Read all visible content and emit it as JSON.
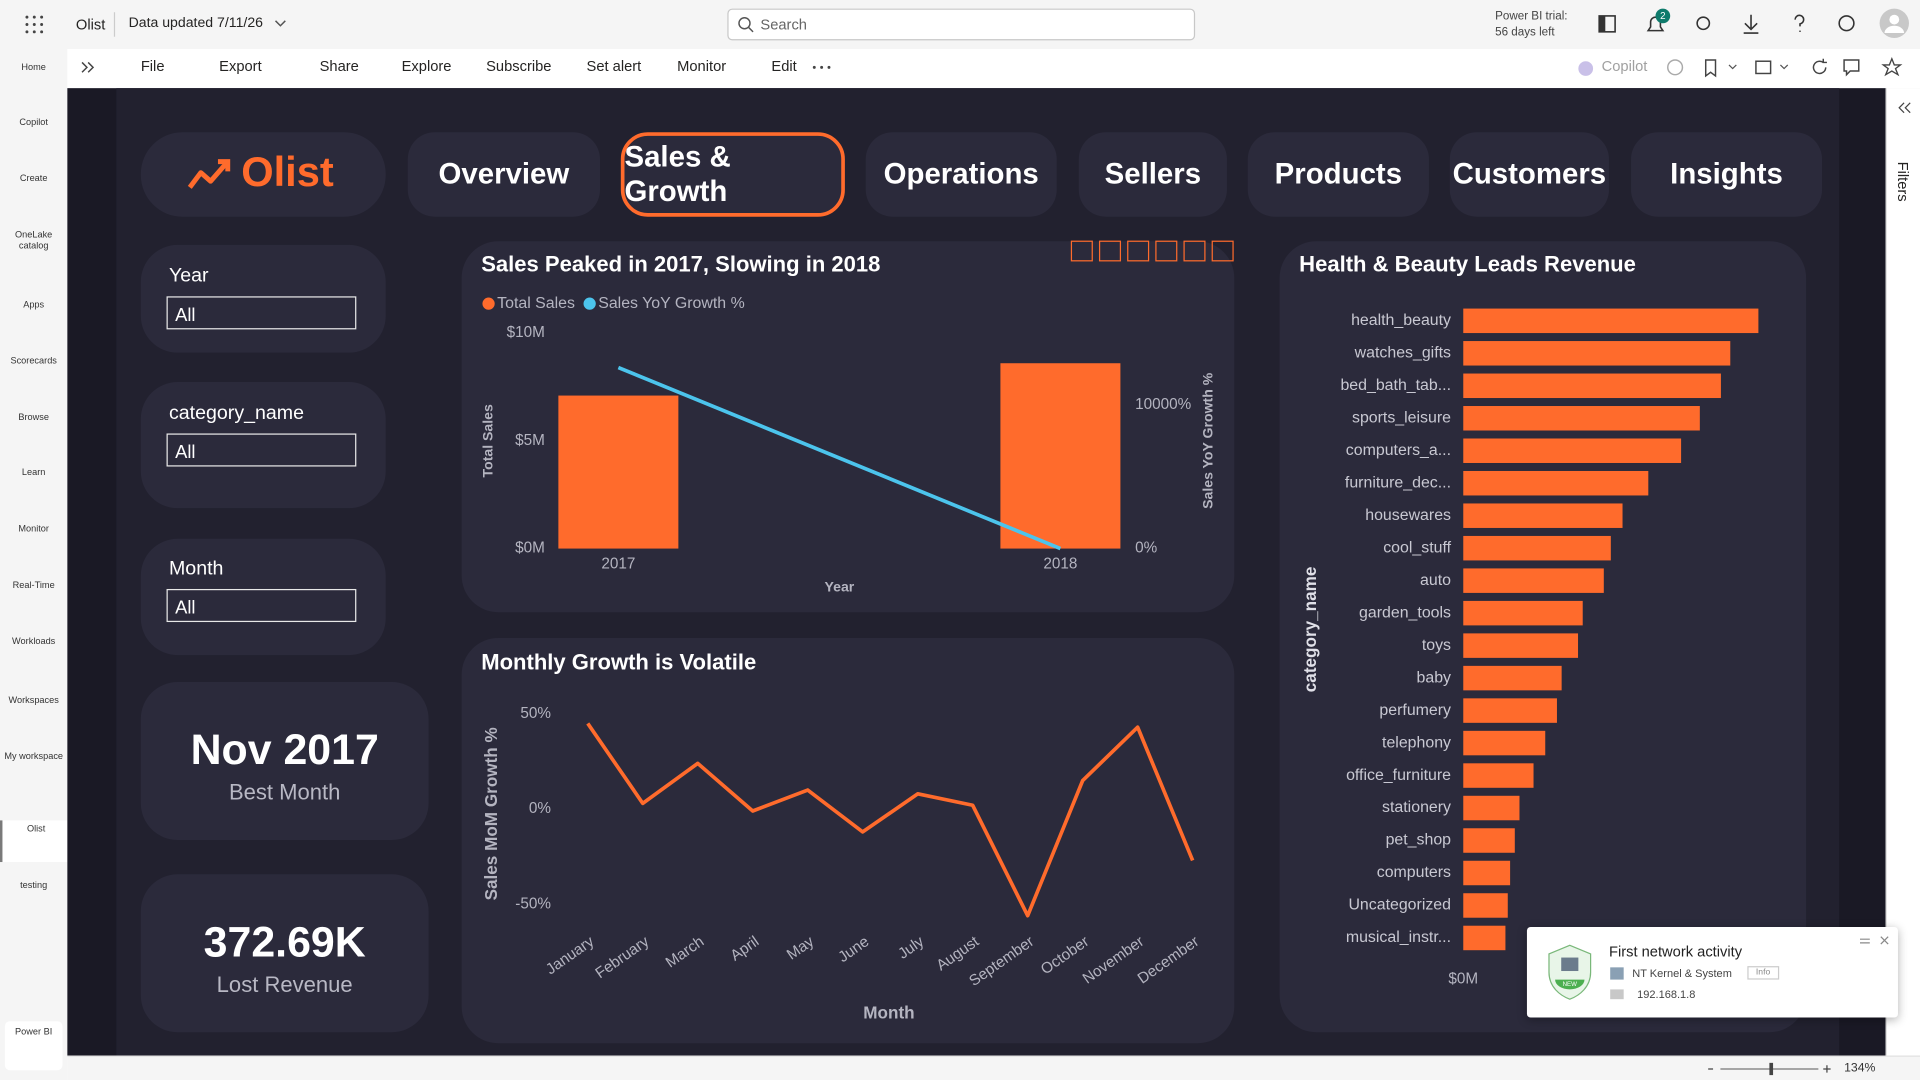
{
  "topbar": {
    "app": "Olist",
    "data_updated": "Data updated 7/11/26",
    "search": "Search",
    "trial": "Power BI trial:",
    "trial_left": "56 days left",
    "notification_count": "2"
  },
  "toolbar": {
    "items": [
      "File",
      "Export",
      "Share",
      "Explore",
      "Subscribe",
      "Set alert",
      "Monitor",
      "Edit"
    ],
    "copilot": "Copilot"
  },
  "nav": {
    "items": [
      "Home",
      "Copilot",
      "Create",
      "OneLake catalog",
      "Apps",
      "Scorecards",
      "Browse",
      "Learn",
      "Monitor",
      "Real-Time",
      "Workloads",
      "Workspaces",
      "My workspace",
      "Olist",
      "testing"
    ],
    "product": "Power BI"
  },
  "report": {
    "logo": "Olist",
    "tabs": [
      "Overview",
      "Sales & Growth",
      "Operations",
      "Sellers",
      "Products",
      "Customers",
      "Insights"
    ],
    "active_tab": 1,
    "slicers": [
      {
        "label": "Year",
        "value": "All"
      },
      {
        "label": "category_name",
        "value": "All"
      },
      {
        "label": "Month",
        "value": "All"
      }
    ],
    "cards": [
      {
        "value": "Nov 2017",
        "label": "Best Month"
      },
      {
        "value": "372.69K",
        "label": "Lost Revenue"
      }
    ]
  },
  "chart_data": [
    {
      "type": "combo",
      "title": "Sales Peaked in 2017, Slowing in 2018",
      "categories": [
        "2017",
        "2018"
      ],
      "series": [
        {
          "name": "Total Sales",
          "type": "bar",
          "color": "#ff6b2c",
          "values": [
            7100000,
            8600000
          ]
        },
        {
          "name": "Sales YoY Growth %",
          "type": "line",
          "axis": "y2",
          "color": "#4cc4ec",
          "values": [
            12600,
            0
          ]
        }
      ],
      "x_label": "Year",
      "y_label": "Total Sales",
      "y2_label": "Sales YoY Growth %",
      "ylim": [
        0,
        10000000
      ],
      "yticks": [
        {
          "value": 0,
          "label": "$0M"
        },
        {
          "value": 5000000,
          "label": "$5M"
        },
        {
          "value": 10000000,
          "label": "$10M"
        }
      ],
      "y2lim": [
        0,
        15000
      ],
      "y2ticks": [
        {
          "value": 0,
          "label": "0%"
        },
        {
          "value": 10000,
          "label": "10000%"
        }
      ]
    },
    {
      "type": "line",
      "title": "Monthly Growth is Volatile",
      "categories": [
        "January",
        "February",
        "March",
        "April",
        "May",
        "June",
        "July",
        "August",
        "September",
        "October",
        "November",
        "December"
      ],
      "values": [
        45,
        3,
        24,
        -1,
        10,
        -12,
        8,
        2,
        -56,
        15,
        43,
        -27
      ],
      "color": "#ff6b2c",
      "x_label": "Month",
      "y_label": "Sales MoM Growth %",
      "ylim": [
        -60,
        55
      ],
      "yticks": [
        {
          "value": 50,
          "label": "50%"
        },
        {
          "value": 0,
          "label": "0%"
        },
        {
          "value": -50,
          "label": "-50%"
        }
      ]
    },
    {
      "type": "barh",
      "title": "Health & Beauty Leads Revenue",
      "categories": [
        "health_beauty",
        "watches_gifts",
        "bed_bath_tab...",
        "sports_leisure",
        "computers_a...",
        "furniture_dec...",
        "housewares",
        "cool_stuff",
        "auto",
        "garden_tools",
        "toys",
        "baby",
        "perfumery",
        "telephony",
        "office_furniture",
        "stationery",
        "pet_shop",
        "computers",
        "Uncategorized",
        "musical_instr..."
      ],
      "values": [
        1260000,
        1140000,
        1100000,
        1010000,
        930000,
        790000,
        680000,
        630000,
        600000,
        510000,
        490000,
        420000,
        400000,
        350000,
        300000,
        240000,
        220000,
        200000,
        190000,
        180000
      ],
      "color": "#ff6b2c",
      "y_label": "category_name",
      "xlim": [
        0,
        1400000
      ],
      "xticks": [
        {
          "value": 0,
          "label": "$0M"
        }
      ]
    }
  ],
  "filters": "Filters",
  "notification": {
    "title": "First network activity",
    "app": "NT Kernel & System",
    "badge": "Info",
    "address": "192.168.1.8",
    "icon_badge": "NEW"
  },
  "status": {
    "zoom": "134%"
  }
}
